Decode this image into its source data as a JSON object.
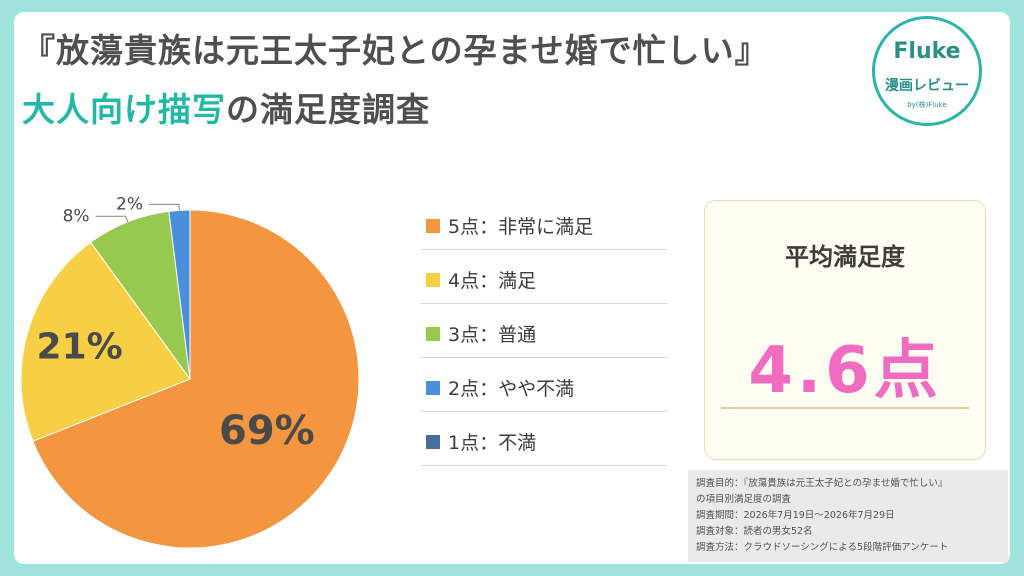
{
  "header": {
    "title_line1": "『放蕩貴族は元王太子妃との孕ませ婚で忙しい』",
    "title_line2_highlight": "大人向け描写",
    "title_line2_rest": "の満足度調査"
  },
  "logo": {
    "brand": "Fluke",
    "subtitle": "漫画レビュー",
    "byline": "by(株)Fluke"
  },
  "chart_data": {
    "type": "pie",
    "categories": [
      "5点：非常に満足",
      "4点：満足",
      "3点：普通",
      "2点：やや不満",
      "1点：不満"
    ],
    "values": [
      69,
      21,
      8,
      2,
      0
    ],
    "labels": [
      "69%",
      "21%",
      "8%",
      "2%",
      ""
    ],
    "colors": [
      "#f3963f",
      "#f6cf45",
      "#97c84f",
      "#4a8fdb",
      "#4a6e9c"
    ],
    "legend_position": "right"
  },
  "average": {
    "label": "平均満足度",
    "value": "4.6点"
  },
  "survey_info": [
    "調査目的：『放蕩貴族は元王太子妃との孕ませ婚で忙しい』",
    "の項目別満足度の調査",
    "調査期間：2026年7月19日〜2026年7月29日",
    "調査対象：読者の男女52名",
    "調査方法：クラウドソーシングによる5段階評価アンケート"
  ]
}
